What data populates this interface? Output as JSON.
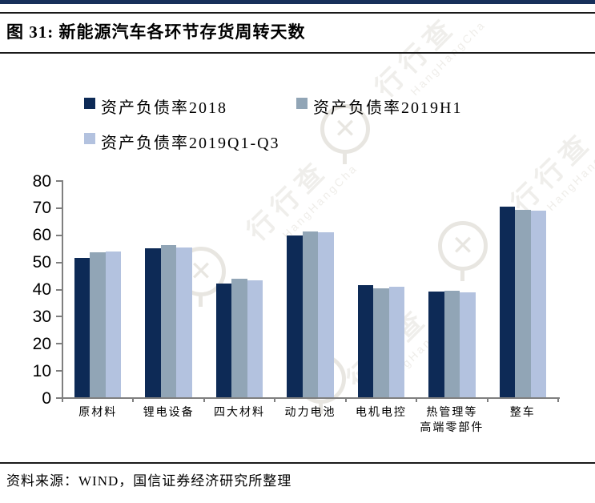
{
  "header": {
    "title": "图 31:  新能源汽车各环节存货周转天数"
  },
  "legend": [
    {
      "label": "资产负债率2018",
      "color": "#0d2a56"
    },
    {
      "label": "资产负债率2019H1",
      "color": "#91a5b6"
    },
    {
      "label": "资产负债率2019Q1-Q3",
      "color": "#b3c2df"
    }
  ],
  "chart_data": {
    "type": "bar",
    "title": "新能源汽车各环节存货周转天数",
    "categories": [
      "原材料",
      "锂电设备",
      "四大材料",
      "动力电池",
      "电机电控",
      "热管理等\n高端零部件",
      "整车"
    ],
    "series": [
      {
        "name": "资产负债率2018",
        "color": "#0d2a56",
        "values": [
          51.7,
          55.1,
          42.2,
          60.0,
          41.7,
          39.4,
          70.6
        ]
      },
      {
        "name": "资产负债率2019H1",
        "color": "#91a5b6",
        "values": [
          53.8,
          56.3,
          44.0,
          61.3,
          40.4,
          39.7,
          69.5
        ]
      },
      {
        "name": "资产负债率2019Q1-Q3",
        "color": "#b3c2df",
        "values": [
          54.0,
          55.6,
          43.5,
          61.2,
          41.1,
          39.0,
          69.0
        ]
      }
    ],
    "xlabel": "",
    "ylabel": "",
    "ylim": [
      0,
      80
    ],
    "yticks": [
      0,
      10,
      20,
      30,
      40,
      50,
      60,
      70,
      80
    ],
    "grid": false,
    "legend_position": "top"
  },
  "footer": {
    "source": "资料来源：WIND，国信证券经济研究所整理"
  },
  "watermark": {
    "text": "行行查",
    "subtext": "HangHangCha"
  },
  "colors": {
    "accent_bar": "#17305a",
    "axis": "#7f7f7f",
    "rule": "#1a1a1a"
  }
}
